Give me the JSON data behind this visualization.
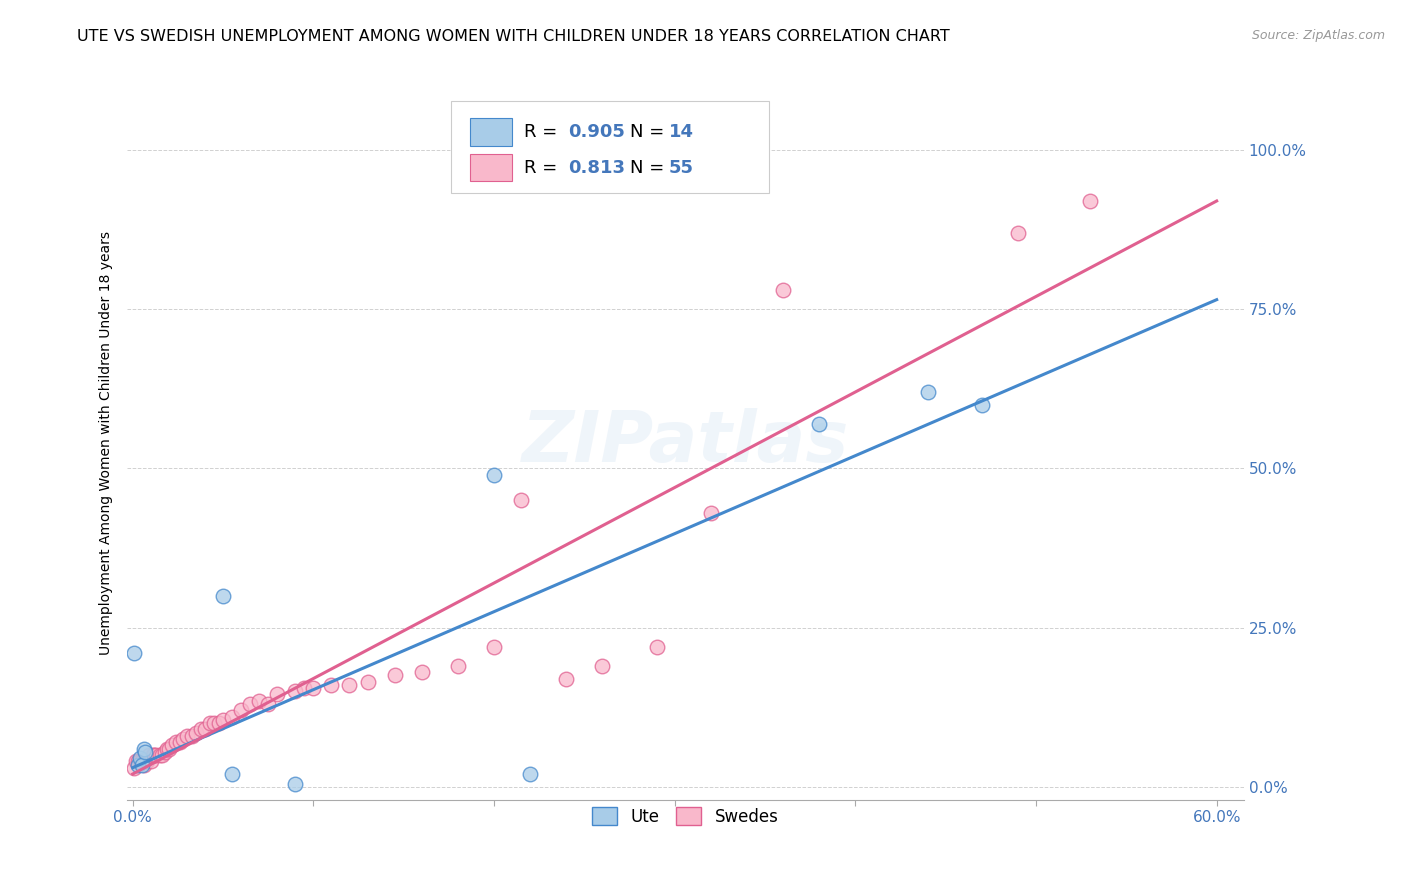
{
  "title": "UTE VS SWEDISH UNEMPLOYMENT AMONG WOMEN WITH CHILDREN UNDER 18 YEARS CORRELATION CHART",
  "source": "Source: ZipAtlas.com",
  "ylabel": "Unemployment Among Women with Children Under 18 years",
  "xlim": [
    -0.003,
    0.615
  ],
  "ylim": [
    -0.02,
    1.1
  ],
  "ute_R": "0.905",
  "ute_N": "14",
  "swedes_R": "0.813",
  "swedes_N": "55",
  "ute_color": "#a8cce8",
  "swedes_color": "#f9b8cb",
  "ute_line_color": "#4488cc",
  "swedes_line_color": "#e06090",
  "ute_x": [
    0.001,
    0.003,
    0.004,
    0.005,
    0.006,
    0.007,
    0.05,
    0.055,
    0.09,
    0.2,
    0.22,
    0.38,
    0.44,
    0.47
  ],
  "ute_y": [
    0.21,
    0.035,
    0.045,
    0.035,
    0.06,
    0.055,
    0.3,
    0.02,
    0.005,
    0.49,
    0.02,
    0.57,
    0.62,
    0.6
  ],
  "swedes_x": [
    0.001,
    0.002,
    0.003,
    0.004,
    0.005,
    0.006,
    0.007,
    0.008,
    0.009,
    0.01,
    0.011,
    0.012,
    0.013,
    0.015,
    0.016,
    0.018,
    0.019,
    0.02,
    0.022,
    0.024,
    0.026,
    0.028,
    0.03,
    0.033,
    0.035,
    0.038,
    0.04,
    0.043,
    0.045,
    0.048,
    0.05,
    0.055,
    0.06,
    0.065,
    0.07,
    0.075,
    0.08,
    0.09,
    0.095,
    0.1,
    0.11,
    0.12,
    0.13,
    0.145,
    0.16,
    0.18,
    0.2,
    0.215,
    0.24,
    0.26,
    0.29,
    0.32,
    0.36,
    0.49,
    0.53
  ],
  "swedes_y": [
    0.03,
    0.04,
    0.04,
    0.04,
    0.04,
    0.035,
    0.04,
    0.04,
    0.05,
    0.04,
    0.05,
    0.05,
    0.05,
    0.05,
    0.05,
    0.055,
    0.06,
    0.06,
    0.065,
    0.07,
    0.07,
    0.075,
    0.08,
    0.08,
    0.085,
    0.09,
    0.09,
    0.1,
    0.1,
    0.1,
    0.105,
    0.11,
    0.12,
    0.13,
    0.135,
    0.13,
    0.145,
    0.15,
    0.155,
    0.155,
    0.16,
    0.16,
    0.165,
    0.175,
    0.18,
    0.19,
    0.22,
    0.45,
    0.17,
    0.19,
    0.22,
    0.43,
    0.78,
    0.87,
    0.92
  ],
  "ute_line_x0": 0.0,
  "ute_line_x1": 0.6,
  "ute_line_y0": 0.03,
  "ute_line_y1": 0.765,
  "swedes_line_x0": 0.0,
  "swedes_line_x1": 0.6,
  "swedes_line_y0": 0.02,
  "swedes_line_y1": 0.92,
  "ytick_vals": [
    0.0,
    0.25,
    0.5,
    0.75,
    1.0
  ],
  "ytick_labels": [
    "0.0%",
    "25.0%",
    "50.0%",
    "75.0%",
    "100.0%"
  ],
  "xtick_vals": [
    0.0,
    0.1,
    0.2,
    0.3,
    0.4,
    0.5,
    0.6
  ],
  "xtick_label_0": "0.0%",
  "xtick_label_last": "60.0%",
  "tick_color": "#4477bb",
  "title_fontsize": 11.5,
  "axis_label_fontsize": 10,
  "tick_fontsize": 11,
  "source_fontsize": 9,
  "legend_fontsize": 13
}
